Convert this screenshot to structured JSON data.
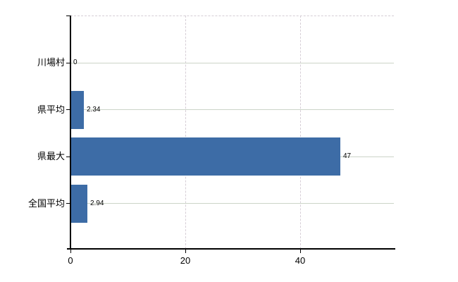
{
  "chart_data": {
    "type": "bar",
    "orientation": "horizontal",
    "categories": [
      "川場村",
      "県平均",
      "県最大",
      "全国平均"
    ],
    "values": [
      0,
      2.34,
      47,
      2.94
    ],
    "value_labels": [
      "0",
      "2.34",
      "47",
      "2.94"
    ],
    "x_ticks": [
      0,
      20,
      40
    ],
    "x_tick_labels": [
      "0",
      "20",
      "40"
    ],
    "xlim": [
      0,
      56.3
    ],
    "grid": {
      "horizontal_solid": true,
      "vertical_dashed": true,
      "top_border_dashed": true
    },
    "colors": {
      "bar": "#3d6ca6",
      "axis": "#000000",
      "h_gridline": "#ccd4c8",
      "v_gridline": "#d6ced6",
      "text": "#000000",
      "background": "#ffffff"
    }
  }
}
